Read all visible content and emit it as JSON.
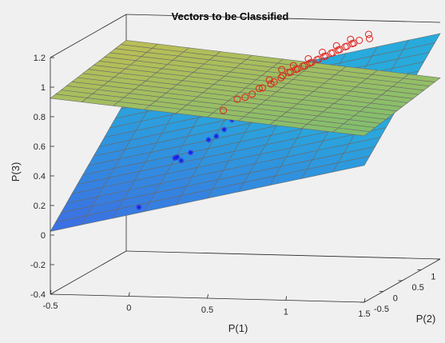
{
  "chart_data": {
    "type": "scatter",
    "title": "Vectors to be Classified",
    "xlabel": "P(1)",
    "ylabel": "P(2)",
    "zlabel": "P(3)",
    "xlim": [
      -0.5,
      1.5
    ],
    "ylim": [
      -0.5,
      1.5
    ],
    "zlim": [
      -0.4,
      1.2
    ],
    "x_ticks": [
      "-0.5",
      "0",
      "0.5",
      "1",
      "1.5"
    ],
    "y_ticks": [
      "-0.5",
      "0",
      "0.5",
      "1",
      "1.5"
    ],
    "z_ticks": [
      "-0.4",
      "-0.2",
      "0",
      "0.2",
      "0.4",
      "0.6",
      "0.8",
      "1",
      "1.2"
    ],
    "grid": false,
    "colors": {
      "class_circle": "#e0201b",
      "class_star": "#1a1ae6",
      "background": "#f0f0f0"
    },
    "series": [
      {
        "marker": "circle",
        "points": [
          [
            0.42,
            0.62,
            0.78
          ],
          [
            0.48,
            0.58,
            0.8
          ],
          [
            0.52,
            0.6,
            0.82
          ],
          [
            0.55,
            0.66,
            0.85
          ],
          [
            0.58,
            0.62,
            0.86
          ],
          [
            0.62,
            0.68,
            0.88
          ],
          [
            0.65,
            0.64,
            0.9
          ],
          [
            0.68,
            0.7,
            0.92
          ],
          [
            0.7,
            0.66,
            0.94
          ],
          [
            0.72,
            0.74,
            0.95
          ],
          [
            0.74,
            0.7,
            0.96
          ],
          [
            0.76,
            0.76,
            0.97
          ],
          [
            0.78,
            0.72,
            0.98
          ],
          [
            0.8,
            0.78,
            0.99
          ],
          [
            0.82,
            0.74,
            1.0
          ],
          [
            0.84,
            0.8,
            1.01
          ],
          [
            0.86,
            0.76,
            1.02
          ],
          [
            0.88,
            0.82,
            1.03
          ],
          [
            0.9,
            0.78,
            1.04
          ],
          [
            0.92,
            0.84,
            1.05
          ],
          [
            0.94,
            0.8,
            1.06
          ],
          [
            0.96,
            0.86,
            1.07
          ],
          [
            0.98,
            0.82,
            1.08
          ],
          [
            1.0,
            0.88,
            1.09
          ],
          [
            1.02,
            0.84,
            1.1
          ],
          [
            1.04,
            0.9,
            1.11
          ],
          [
            1.06,
            0.86,
            1.12
          ],
          [
            1.08,
            0.92,
            1.13
          ],
          [
            1.1,
            0.88,
            1.14
          ],
          [
            1.12,
            0.94,
            1.15
          ],
          [
            0.88,
            0.96,
            1.06
          ],
          [
            0.96,
            1.0,
            1.1
          ],
          [
            1.04,
            1.04,
            1.14
          ],
          [
            0.8,
            0.92,
            1.02
          ],
          [
            0.72,
            0.86,
            0.98
          ],
          [
            0.36,
            0.5,
            0.72
          ],
          [
            1.16,
            1.02,
            1.18
          ],
          [
            1.18,
            0.96,
            1.16
          ],
          [
            0.66,
            0.8,
            0.96
          ],
          [
            0.6,
            0.72,
            0.9
          ]
        ]
      },
      {
        "marker": "star",
        "points": [
          [
            0.1,
            0.3,
            0.42
          ],
          [
            0.12,
            0.28,
            0.43
          ],
          [
            0.15,
            0.26,
            0.41
          ],
          [
            0.2,
            0.3,
            0.46
          ],
          [
            0.3,
            0.36,
            0.54
          ],
          [
            0.34,
            0.4,
            0.56
          ],
          [
            0.38,
            0.44,
            0.6
          ],
          [
            0.42,
            0.48,
            0.66
          ],
          [
            0.46,
            0.52,
            0.7
          ],
          [
            0.5,
            0.56,
            0.74
          ],
          [
            0.54,
            0.58,
            0.77
          ],
          [
            0.58,
            0.6,
            0.79
          ],
          [
            0.62,
            0.64,
            0.82
          ],
          [
            0.7,
            0.68,
            0.86
          ],
          [
            0.76,
            0.7,
            0.88
          ],
          [
            -0.1,
            0.18,
            0.1
          ]
        ]
      }
    ],
    "planes": [
      {
        "name_visible": false,
        "fill": "blue-green colormap",
        "coefficients": [
          0.25,
          0.3,
          0.3
        ]
      },
      {
        "name_visible": false,
        "fill": "yellow-green colormap",
        "coefficients": [
          -0.1,
          0.05,
          0.9
        ]
      }
    ]
  }
}
